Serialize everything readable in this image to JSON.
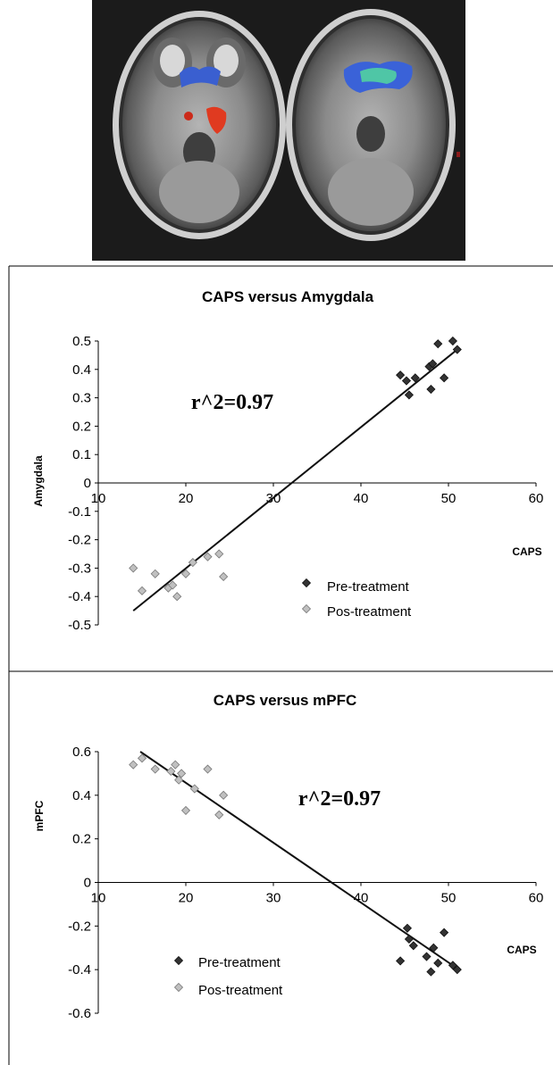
{
  "chart_data": [
    {
      "type": "scatter",
      "title": "CAPS versus Amygdala",
      "xlabel": "CAPS",
      "ylabel": "Amygdala",
      "xlim": [
        10,
        60
      ],
      "ylim": [
        -0.5,
        0.5
      ],
      "xticks": [
        10,
        20,
        30,
        40,
        50,
        60
      ],
      "yticks": [
        0.5,
        0.4,
        0.3,
        0.2,
        0.1,
        0,
        -0.1,
        -0.2,
        -0.3,
        -0.4,
        -0.5
      ],
      "annotation": "r^2=0.97",
      "legend": [
        "Pre-treatment",
        "Pos-treatment"
      ],
      "legend_position": "lower-right",
      "series": [
        {
          "name": "Pre-treatment",
          "color": "#333333",
          "points": [
            [
              44.5,
              0.38
            ],
            [
              45.2,
              0.36
            ],
            [
              45.5,
              0.31
            ],
            [
              46.2,
              0.37
            ],
            [
              47.8,
              0.41
            ],
            [
              48.2,
              0.42
            ],
            [
              48.0,
              0.33
            ],
            [
              48.8,
              0.49
            ],
            [
              49.5,
              0.37
            ],
            [
              50.5,
              0.5
            ],
            [
              51.0,
              0.47
            ]
          ]
        },
        {
          "name": "Pos-treatment",
          "color": "#c0c0c0",
          "points": [
            [
              14.0,
              -0.3
            ],
            [
              15.0,
              -0.38
            ],
            [
              16.5,
              -0.32
            ],
            [
              18.0,
              -0.37
            ],
            [
              18.5,
              -0.36
            ],
            [
              19.0,
              -0.4
            ],
            [
              20.0,
              -0.32
            ],
            [
              20.8,
              -0.28
            ],
            [
              22.5,
              -0.26
            ],
            [
              23.8,
              -0.25
            ],
            [
              24.3,
              -0.33
            ]
          ]
        }
      ],
      "fit_line": [
        [
          14.0,
          -0.45
        ],
        [
          51.0,
          0.47
        ]
      ]
    },
    {
      "type": "scatter",
      "title": "CAPS versus mPFC",
      "xlabel": "CAPS",
      "ylabel": "mPFC",
      "xlim": [
        10,
        60
      ],
      "ylim": [
        -0.6,
        0.6
      ],
      "xticks": [
        10,
        20,
        30,
        40,
        50,
        60
      ],
      "yticks": [
        0.6,
        0.4,
        0.2,
        0,
        -0.2,
        -0.4,
        -0.6
      ],
      "annotation": "r^2=0.97",
      "legend": [
        "Pre-treatment",
        "Pos-treatment"
      ],
      "legend_position": "lower-left",
      "series": [
        {
          "name": "Pre-treatment",
          "color": "#333333",
          "points": [
            [
              44.5,
              -0.36
            ],
            [
              45.3,
              -0.21
            ],
            [
              45.5,
              -0.26
            ],
            [
              46.0,
              -0.29
            ],
            [
              47.5,
              -0.34
            ],
            [
              48.0,
              -0.41
            ],
            [
              48.3,
              -0.3
            ],
            [
              48.8,
              -0.37
            ],
            [
              49.5,
              -0.23
            ],
            [
              50.5,
              -0.38
            ],
            [
              51.0,
              -0.4
            ]
          ]
        },
        {
          "name": "Pos-treatment",
          "color": "#c0c0c0",
          "points": [
            [
              14.0,
              0.54
            ],
            [
              15.0,
              0.57
            ],
            [
              16.5,
              0.52
            ],
            [
              18.3,
              0.51
            ],
            [
              18.8,
              0.54
            ],
            [
              19.2,
              0.47
            ],
            [
              19.5,
              0.5
            ],
            [
              20.0,
              0.33
            ],
            [
              21.0,
              0.43
            ],
            [
              22.5,
              0.52
            ],
            [
              23.8,
              0.31
            ],
            [
              24.3,
              0.4
            ]
          ]
        }
      ],
      "fit_line": [
        [
          14.8,
          0.6
        ],
        [
          51.2,
          -0.4
        ]
      ]
    }
  ]
}
